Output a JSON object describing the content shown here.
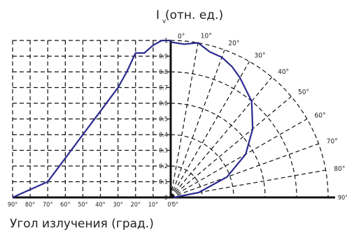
{
  "chart_data": {
    "type": "polar-line",
    "title_main": "I",
    "title_sub": "v",
    "title_rest": " (отн. ед.)",
    "xlabel": "Угол излучения (град.)",
    "ylim": [
      0,
      1
    ],
    "y_ticks": [
      "0",
      "0.1",
      "0.2",
      "0.3",
      "0.4",
      "0.5",
      "0.6",
      "0.7",
      "0.8",
      "0.9",
      "1"
    ],
    "x_ticks_left": [
      "90°",
      "80°",
      "70°",
      "60°",
      "50°",
      "40°",
      "30°",
      "20°",
      "10°",
      "0°"
    ],
    "x_tick_right": "0°",
    "x_tick_far_right": "90°",
    "polar_angle_labels": [
      "0°",
      "10°",
      "20°",
      "30°",
      "40°",
      "50°",
      "60°",
      "70°",
      "80°"
    ],
    "left_curve": {
      "angle_deg": [
        90,
        80,
        70,
        60,
        50,
        40,
        30,
        25,
        20,
        15,
        10,
        5,
        0
      ],
      "value": [
        0,
        0.05,
        0.1,
        0.25,
        0.4,
        0.55,
        0.7,
        0.8,
        0.92,
        0.92,
        0.97,
        1.0,
        1.0
      ]
    },
    "right_curve": {
      "angle_deg": [
        0,
        5,
        10,
        15,
        20,
        25,
        30,
        40,
        50,
        60,
        70,
        80,
        90
      ],
      "value": [
        0.99,
        0.98,
        1.0,
        0.96,
        0.95,
        0.92,
        0.88,
        0.8,
        0.68,
        0.55,
        0.38,
        0.18,
        0.02
      ]
    },
    "grid": true,
    "colors": {
      "curve": "#2a2a8f",
      "grid": "#111111"
    }
  }
}
